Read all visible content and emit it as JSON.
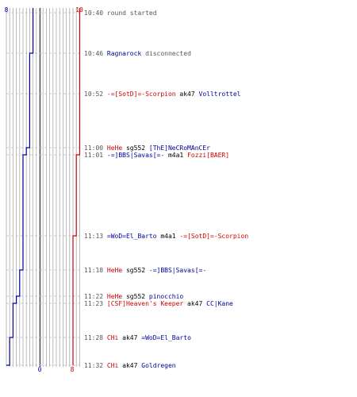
{
  "chart_data": {
    "type": "line",
    "colors": {
      "blue_team": "#000099",
      "red_team": "#cc0000",
      "grid": "#aaaaaa",
      "center": "#555555"
    },
    "start_counts": {
      "blue": "8",
      "red": "10"
    },
    "end_counts": {
      "blue": "0",
      "red": "8"
    },
    "steps_blue": [
      8,
      7,
      6,
      5,
      4,
      3,
      2,
      1,
      0
    ],
    "steps_red": [
      10,
      9,
      8
    ],
    "events": [
      {
        "time": "10:40",
        "parts": [
          {
            "t": "round started",
            "c": "gray"
          }
        ]
      },
      {
        "time": "10:46",
        "parts": [
          {
            "t": "Ragnarock",
            "c": "blue"
          },
          {
            "t": " disconnected",
            "c": "gray"
          }
        ]
      },
      {
        "time": "10:52",
        "parts": [
          {
            "t": "-=[SotD]=-Scorpion",
            "c": "red"
          },
          {
            "t": " ak47 ",
            "c": "blk"
          },
          {
            "t": "Volltrottel",
            "c": "blue"
          }
        ]
      },
      {
        "time": "11:00",
        "parts": [
          {
            "t": "HeHe",
            "c": "red"
          },
          {
            "t": " sg552 ",
            "c": "blk"
          },
          {
            "t": "[ThE]NeCRoMAnCEr",
            "c": "blue"
          }
        ]
      },
      {
        "time": "11:01",
        "parts": [
          {
            "t": "-=]BBS|Savas[=-",
            "c": "blue"
          },
          {
            "t": " m4a1 ",
            "c": "blk"
          },
          {
            "t": "Fozzi[BAER]",
            "c": "red"
          }
        ]
      },
      {
        "time": "11:13",
        "parts": [
          {
            "t": "=WoD=El_Barto",
            "c": "blue"
          },
          {
            "t": " m4a1 ",
            "c": "blk"
          },
          {
            "t": "-=[SotD]=-Scorpion",
            "c": "red"
          }
        ]
      },
      {
        "time": "11:18",
        "parts": [
          {
            "t": "HeHe",
            "c": "red"
          },
          {
            "t": " sg552 ",
            "c": "blk"
          },
          {
            "t": "-=]BBS|Savas[=-",
            "c": "blue"
          }
        ]
      },
      {
        "time": "11:22",
        "parts": [
          {
            "t": "HeHe",
            "c": "red"
          },
          {
            "t": " sg552 ",
            "c": "blk"
          },
          {
            "t": "pinocchio",
            "c": "blue"
          }
        ]
      },
      {
        "time": "11:23",
        "parts": [
          {
            "t": "[CSF]Heaven's Keeper",
            "c": "red"
          },
          {
            "t": " ak47 ",
            "c": "blk"
          },
          {
            "t": "CC|Kane",
            "c": "blue"
          }
        ]
      },
      {
        "time": "11:28",
        "parts": [
          {
            "t": "CHi",
            "c": "red"
          },
          {
            "t": " ak47 ",
            "c": "blk"
          },
          {
            "t": "=WoD=El_Barto",
            "c": "blue"
          }
        ]
      },
      {
        "time": "11:32",
        "parts": [
          {
            "t": "CHi",
            "c": "red"
          },
          {
            "t": " ak47 ",
            "c": "blk"
          },
          {
            "t": "Goldregen",
            "c": "blue"
          }
        ]
      }
    ]
  }
}
